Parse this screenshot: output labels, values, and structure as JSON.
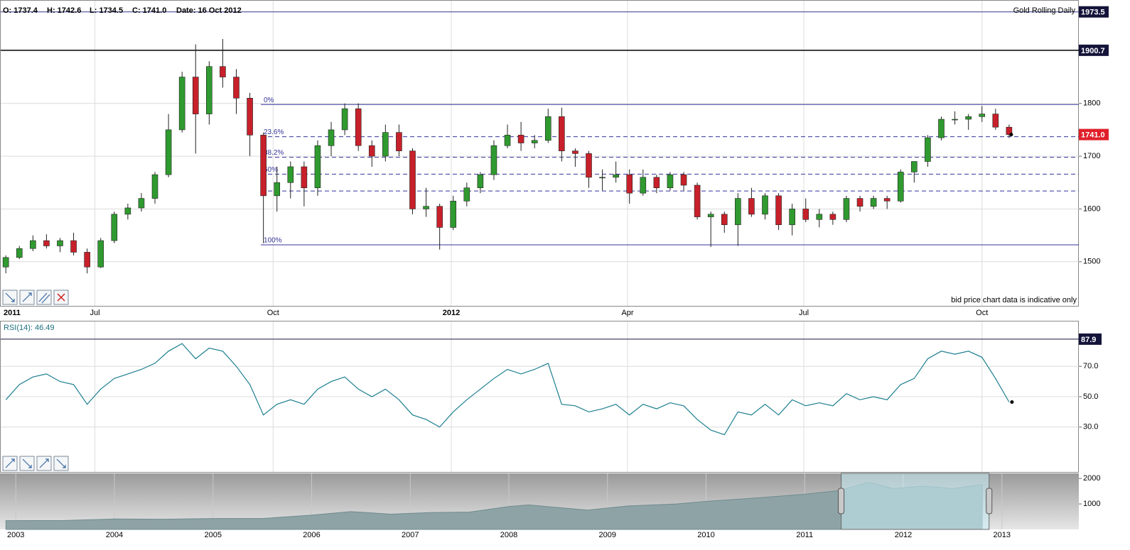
{
  "chart_data": [
    {
      "type": "candlestick",
      "title": "Gold Rolling Daily",
      "header": [
        "O: 1737.4",
        "H: 1742.6",
        "L: 1734.5",
        "C: 1741.0",
        "Date: 16 Oct 2012"
      ],
      "note": "bid price chart data is indicative only",
      "start_label": "2011",
      "last_price_label": "1741.0",
      "x": [
        "2011-05-16",
        "2011-05-23",
        "2011-05-30",
        "2011-06-06",
        "2011-06-13",
        "2011-06-20",
        "2011-06-27",
        "2011-07-04",
        "2011-07-11",
        "2011-07-18",
        "2011-07-25",
        "2011-08-01",
        "2011-08-08",
        "2011-08-15",
        "2011-08-22",
        "2011-08-29",
        "2011-09-05",
        "2011-09-12",
        "2011-09-19",
        "2011-09-26",
        "2011-10-03",
        "2011-10-10",
        "2011-10-17",
        "2011-10-24",
        "2011-10-31",
        "2011-11-07",
        "2011-11-14",
        "2011-11-21",
        "2011-11-28",
        "2011-12-05",
        "2011-12-12",
        "2011-12-19",
        "2011-12-26",
        "2012-01-02",
        "2012-01-09",
        "2012-01-16",
        "2012-01-23",
        "2012-01-30",
        "2012-02-06",
        "2012-02-13",
        "2012-02-20",
        "2012-02-27",
        "2012-03-05",
        "2012-03-12",
        "2012-03-19",
        "2012-03-26",
        "2012-04-02",
        "2012-04-09",
        "2012-04-16",
        "2012-04-23",
        "2012-04-30",
        "2012-05-07",
        "2012-05-14",
        "2012-05-21",
        "2012-05-28",
        "2012-06-04",
        "2012-06-11",
        "2012-06-18",
        "2012-06-25",
        "2012-07-02",
        "2012-07-09",
        "2012-07-16",
        "2012-07-23",
        "2012-07-30",
        "2012-08-06",
        "2012-08-13",
        "2012-08-20",
        "2012-08-27",
        "2012-09-03",
        "2012-09-10",
        "2012-09-17",
        "2012-09-24",
        "2012-10-01",
        "2012-10-08",
        "2012-10-15"
      ],
      "ohlc": [
        [
          1490,
          1512,
          1478,
          1508
        ],
        [
          1508,
          1530,
          1505,
          1525
        ],
        [
          1525,
          1550,
          1520,
          1540
        ],
        [
          1540,
          1552,
          1525,
          1530
        ],
        [
          1530,
          1545,
          1518,
          1540
        ],
        [
          1540,
          1555,
          1512,
          1518
        ],
        [
          1518,
          1525,
          1478,
          1490
        ],
        [
          1490,
          1545,
          1488,
          1540
        ],
        [
          1540,
          1595,
          1535,
          1590
        ],
        [
          1590,
          1610,
          1580,
          1602
        ],
        [
          1602,
          1630,
          1595,
          1620
        ],
        [
          1620,
          1670,
          1610,
          1665
        ],
        [
          1665,
          1780,
          1660,
          1750
        ],
        [
          1750,
          1860,
          1745,
          1850
        ],
        [
          1850,
          1912,
          1705,
          1780
        ],
        [
          1780,
          1880,
          1760,
          1870
        ],
        [
          1870,
          1922,
          1830,
          1850
        ],
        [
          1850,
          1865,
          1780,
          1810
        ],
        [
          1810,
          1820,
          1700,
          1740
        ],
        [
          1740,
          1745,
          1535,
          1625
        ],
        [
          1625,
          1680,
          1595,
          1650
        ],
        [
          1650,
          1690,
          1620,
          1680
        ],
        [
          1680,
          1690,
          1605,
          1640
        ],
        [
          1640,
          1730,
          1625,
          1720
        ],
        [
          1720,
          1765,
          1700,
          1750
        ],
        [
          1750,
          1800,
          1740,
          1790
        ],
        [
          1790,
          1800,
          1710,
          1720
        ],
        [
          1720,
          1730,
          1680,
          1700
        ],
        [
          1700,
          1760,
          1690,
          1745
        ],
        [
          1745,
          1760,
          1700,
          1710
        ],
        [
          1710,
          1715,
          1590,
          1600
        ],
        [
          1600,
          1640,
          1585,
          1605
        ],
        [
          1605,
          1610,
          1523,
          1565
        ],
        [
          1565,
          1625,
          1560,
          1615
        ],
        [
          1615,
          1650,
          1605,
          1640
        ],
        [
          1640,
          1670,
          1630,
          1665
        ],
        [
          1665,
          1730,
          1655,
          1720
        ],
        [
          1720,
          1760,
          1715,
          1740
        ],
        [
          1740,
          1765,
          1710,
          1725
        ],
        [
          1725,
          1740,
          1715,
          1730
        ],
        [
          1730,
          1790,
          1725,
          1775
        ],
        [
          1775,
          1792,
          1690,
          1710
        ],
        [
          1710,
          1715,
          1680,
          1705
        ],
        [
          1705,
          1710,
          1640,
          1660
        ],
        [
          1660,
          1675,
          1635,
          1660
        ],
        [
          1660,
          1690,
          1650,
          1665
        ],
        [
          1665,
          1675,
          1610,
          1630
        ],
        [
          1630,
          1675,
          1625,
          1660
        ],
        [
          1660,
          1665,
          1630,
          1640
        ],
        [
          1640,
          1670,
          1635,
          1665
        ],
        [
          1665,
          1670,
          1635,
          1645
        ],
        [
          1645,
          1650,
          1580,
          1585
        ],
        [
          1585,
          1595,
          1528,
          1590
        ],
        [
          1590,
          1595,
          1555,
          1570
        ],
        [
          1570,
          1630,
          1530,
          1620
        ],
        [
          1620,
          1640,
          1585,
          1590
        ],
        [
          1590,
          1630,
          1580,
          1625
        ],
        [
          1625,
          1630,
          1560,
          1570
        ],
        [
          1570,
          1610,
          1550,
          1600
        ],
        [
          1600,
          1620,
          1575,
          1580
        ],
        [
          1580,
          1600,
          1565,
          1590
        ],
        [
          1590,
          1595,
          1570,
          1580
        ],
        [
          1580,
          1625,
          1575,
          1620
        ],
        [
          1620,
          1625,
          1595,
          1605
        ],
        [
          1605,
          1625,
          1600,
          1620
        ],
        [
          1620,
          1625,
          1600,
          1615
        ],
        [
          1615,
          1675,
          1612,
          1670
        ],
        [
          1670,
          1690,
          1650,
          1690
        ],
        [
          1690,
          1740,
          1680,
          1735
        ],
        [
          1735,
          1775,
          1730,
          1770
        ],
        [
          1770,
          1785,
          1760,
          1770
        ],
        [
          1770,
          1780,
          1750,
          1775
        ],
        [
          1775,
          1795,
          1765,
          1780
        ],
        [
          1780,
          1790,
          1750,
          1755
        ],
        [
          1755,
          1760,
          1734.5,
          1741.0
        ]
      ],
      "up_color": "#2f9a2f",
      "down_color": "#c8202a",
      "xlim": [
        "2011-05-13",
        "2012-11-20"
      ],
      "xticks": [
        {
          "value": "2011-07-01",
          "label": "Jul"
        },
        {
          "value": "2011-10-01",
          "label": "Oct"
        },
        {
          "value": "2012-01-01",
          "label": "2012"
        },
        {
          "value": "2012-04-01",
          "label": "Apr"
        },
        {
          "value": "2012-07-01",
          "label": "Jul"
        },
        {
          "value": "2012-10-01",
          "label": "Oct"
        }
      ],
      "ylim": [
        1415,
        1996
      ],
      "yticks": [
        1500,
        1600,
        1700,
        1800
      ],
      "hlines": [
        1973.5,
        1900.7
      ],
      "fib_levels": [
        1798,
        1737,
        1698,
        1666,
        1634,
        1532
      ],
      "fib_labels": [
        "0%",
        "23.6%",
        "38.2%",
        "50%",
        null,
        "100%"
      ],
      "grid": true
    },
    {
      "type": "line",
      "title": "RSI(14): 46.49",
      "color": "#1c7f8f",
      "x": [
        "2011-05-16",
        "2011-05-23",
        "2011-05-30",
        "2011-06-06",
        "2011-06-13",
        "2011-06-20",
        "2011-06-27",
        "2011-07-04",
        "2011-07-11",
        "2011-07-18",
        "2011-07-25",
        "2011-08-01",
        "2011-08-08",
        "2011-08-15",
        "2011-08-22",
        "2011-08-29",
        "2011-09-05",
        "2011-09-12",
        "2011-09-19",
        "2011-09-26",
        "2011-10-03",
        "2011-10-10",
        "2011-10-17",
        "2011-10-24",
        "2011-10-31",
        "2011-11-07",
        "2011-11-14",
        "2011-11-21",
        "2011-11-28",
        "2011-12-05",
        "2011-12-12",
        "2011-12-19",
        "2011-12-26",
        "2012-01-02",
        "2012-01-09",
        "2012-01-16",
        "2012-01-23",
        "2012-01-30",
        "2012-02-06",
        "2012-02-13",
        "2012-02-20",
        "2012-02-27",
        "2012-03-05",
        "2012-03-12",
        "2012-03-19",
        "2012-03-26",
        "2012-04-02",
        "2012-04-09",
        "2012-04-16",
        "2012-04-23",
        "2012-04-30",
        "2012-05-07",
        "2012-05-14",
        "2012-05-21",
        "2012-05-28",
        "2012-06-04",
        "2012-06-11",
        "2012-06-18",
        "2012-06-25",
        "2012-07-02",
        "2012-07-09",
        "2012-07-16",
        "2012-07-23",
        "2012-07-30",
        "2012-08-06",
        "2012-08-13",
        "2012-08-20",
        "2012-08-27",
        "2012-09-03",
        "2012-09-10",
        "2012-09-17",
        "2012-09-24",
        "2012-10-01",
        "2012-10-08",
        "2012-10-15"
      ],
      "values": [
        48,
        58,
        63,
        65,
        60,
        58,
        45,
        55,
        62,
        65,
        68,
        72,
        80,
        85,
        75,
        82,
        80,
        70,
        58,
        38,
        45,
        48,
        45,
        55,
        60,
        63,
        55,
        50,
        55,
        48,
        38,
        35,
        30,
        40,
        48,
        55,
        62,
        68,
        65,
        68,
        72,
        45,
        44,
        40,
        42,
        45,
        38,
        45,
        42,
        46,
        44,
        35,
        28,
        25,
        40,
        38,
        45,
        38,
        48,
        44,
        46,
        44,
        52,
        48,
        50,
        48,
        58,
        62,
        75,
        80,
        78,
        80,
        76,
        62,
        46.49
      ],
      "xlim": [
        "2011-05-13",
        "2012-11-20"
      ],
      "ylim": [
        0,
        100
      ],
      "yticks": [
        {
          "value": 30,
          "label": "30.0"
        },
        {
          "value": 50,
          "label": "50.0"
        },
        {
          "value": 70,
          "label": "70.0"
        }
      ],
      "hlines": [
        87.9
      ],
      "grid": true
    },
    {
      "type": "area",
      "color": "#8ea3a5",
      "x": [
        2002.9,
        2003.5,
        2004,
        2004.5,
        2005,
        2005.5,
        2006,
        2006.4,
        2006.8,
        2007.2,
        2007.6,
        2008.0,
        2008.2,
        2008.8,
        2009.2,
        2009.7,
        2010.0,
        2010.5,
        2011.0,
        2011.35,
        2011.65,
        2011.9,
        2012.2,
        2012.5,
        2012.8
      ],
      "values": [
        345,
        350,
        410,
        400,
        430,
        430,
        560,
        700,
        600,
        660,
        680,
        900,
        960,
        760,
        920,
        1000,
        1100,
        1230,
        1380,
        1520,
        1850,
        1600,
        1700,
        1600,
        1760
      ],
      "xlim": [
        2002.84,
        2013.78
      ],
      "xticks": [
        2003,
        2004,
        2005,
        2006,
        2007,
        2008,
        2009,
        2010,
        2011,
        2012,
        2013
      ],
      "ylim": [
        0,
        2200
      ],
      "yticks": [
        1000,
        2000
      ],
      "window": [
        2011.37,
        2012.87
      ]
    }
  ]
}
